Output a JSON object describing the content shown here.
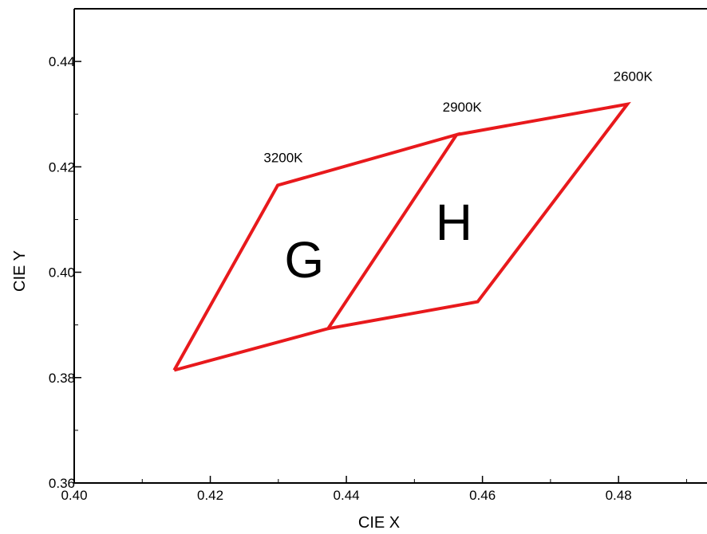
{
  "chart_data": {
    "type": "line",
    "title": "",
    "xlabel": "CIE X",
    "ylabel": "CIE Y",
    "xlim": [
      0.4,
      0.493
    ],
    "ylim": [
      0.36,
      0.45
    ],
    "xticks": [
      {
        "value": 0.4,
        "label": "0.40"
      },
      {
        "value": 0.42,
        "label": "0.42"
      },
      {
        "value": 0.44,
        "label": "0.44"
      },
      {
        "value": 0.46,
        "label": "0.46"
      },
      {
        "value": 0.48,
        "label": "0.48"
      }
    ],
    "yticks": [
      {
        "value": 0.36,
        "label": "0.36"
      },
      {
        "value": 0.38,
        "label": "0.38"
      },
      {
        "value": 0.4,
        "label": "0.40"
      },
      {
        "value": 0.42,
        "label": "0.42"
      },
      {
        "value": 0.44,
        "label": "0.44"
      }
    ],
    "grid": false,
    "line_color": "#e8191c",
    "series": [
      {
        "name": "",
        "points": [
          {
            "x": 0.4147,
            "y": 0.3814
          },
          {
            "x": 0.4299,
            "y": 0.4165
          },
          {
            "x": 0.4562,
            "y": 0.4261
          },
          {
            "x": 0.4373,
            "y": 0.3893
          },
          {
            "x": 0.4147,
            "y": 0.3814
          }
        ]
      },
      {
        "name": "",
        "points": [
          {
            "x": 0.4373,
            "y": 0.3893
          },
          {
            "x": 0.4593,
            "y": 0.3944
          },
          {
            "x": 0.4813,
            "y": 0.4319
          },
          {
            "x": 0.4562,
            "y": 0.4261
          }
        ]
      }
    ],
    "annotations": [
      {
        "text": "3200K",
        "x": 0.4299,
        "y": 0.4165,
        "kind": "corner"
      },
      {
        "text": "2900K",
        "x": 0.4562,
        "y": 0.4261,
        "kind": "corner"
      },
      {
        "text": "2600K",
        "x": 0.4813,
        "y": 0.4319,
        "kind": "corner"
      },
      {
        "text": "G",
        "x": 0.4338,
        "y": 0.4025,
        "kind": "region"
      },
      {
        "text": "H",
        "x": 0.4558,
        "y": 0.4096,
        "kind": "region"
      }
    ]
  }
}
